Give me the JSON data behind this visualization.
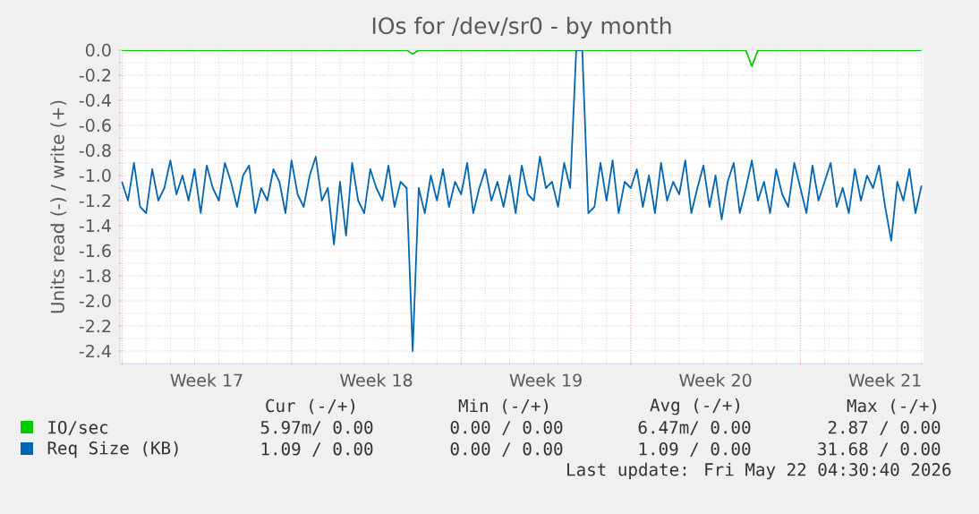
{
  "chart_data": {
    "type": "line",
    "title": "IOs for /dev/sr0 - by month",
    "ylabel": "Units read (-) / write (+)",
    "xlim": [
      "2026-04-19T22:00",
      "2026-05-23T02:00"
    ],
    "xticks": [
      {
        "value": "2026-04-20",
        "label": null
      },
      {
        "value": "2026-04-23T12:00",
        "label": "Week 17"
      },
      {
        "value": "2026-04-27",
        "label": null
      },
      {
        "value": "2026-04-30T12:00",
        "label": "Week 18"
      },
      {
        "value": "2026-05-04",
        "label": null
      },
      {
        "value": "2026-05-07T12:00",
        "label": "Week 19"
      },
      {
        "value": "2026-05-11",
        "label": null
      },
      {
        "value": "2026-05-14T12:00",
        "label": "Week 20"
      },
      {
        "value": "2026-05-18",
        "label": null
      },
      {
        "value": "2026-05-21T12:00",
        "label": "Week 21"
      }
    ],
    "ylim": [
      -2.5,
      0.0
    ],
    "yticks": [
      {
        "value": 0,
        "label": "0.0"
      },
      -0.2,
      -0.4,
      -0.6,
      -0.8,
      {
        "value": -1,
        "label": "-1.0"
      },
      -1.2,
      -1.4,
      -1.6,
      -1.8,
      {
        "value": -2,
        "label": "-2.0"
      },
      -2.2,
      -2.4
    ],
    "grid": true,
    "legend": "bottom",
    "series": [
      {
        "name": "IO/sec",
        "color": "#00cc00",
        "x": [
          "2026-04-20T00:00",
          "2026-05-01T18:00",
          "2026-05-02T00:00",
          "2026-05-02T06:00",
          "2026-05-15T18:00",
          "2026-05-16T00:00",
          "2026-05-16T06:00",
          "2026-05-23T00:00"
        ],
        "values": [
          0,
          0,
          -0.03,
          0,
          0,
          -0.13,
          0,
          0
        ]
      },
      {
        "name": "Req Size (KB)",
        "color": "#0066b3",
        "x": [
          "2026-04-20T00:00",
          "2026-04-20T06:00",
          "2026-04-20T12:00",
          "2026-04-20T18:00",
          "2026-04-21T00:00",
          "2026-04-21T06:00",
          "2026-04-21T12:00",
          "2026-04-21T18:00",
          "2026-04-22T00:00",
          "2026-04-22T06:00",
          "2026-04-22T12:00",
          "2026-04-22T18:00",
          "2026-04-23T00:00",
          "2026-04-23T06:00",
          "2026-04-23T12:00",
          "2026-04-23T18:00",
          "2026-04-24T00:00",
          "2026-04-24T06:00",
          "2026-04-24T12:00",
          "2026-04-24T18:00",
          "2026-04-25T00:00",
          "2026-04-25T06:00",
          "2026-04-25T12:00",
          "2026-04-25T18:00",
          "2026-04-26T00:00",
          "2026-04-26T06:00",
          "2026-04-26T12:00",
          "2026-04-26T18:00",
          "2026-04-27T00:00",
          "2026-04-27T06:00",
          "2026-04-27T12:00",
          "2026-04-27T18:00",
          "2026-04-28T00:00",
          "2026-04-28T06:00",
          "2026-04-28T12:00",
          "2026-04-28T18:00",
          "2026-04-29T00:00",
          "2026-04-29T06:00",
          "2026-04-29T12:00",
          "2026-04-29T18:00",
          "2026-04-30T00:00",
          "2026-04-30T06:00",
          "2026-04-30T12:00",
          "2026-04-30T18:00",
          "2026-05-01T00:00",
          "2026-05-01T06:00",
          "2026-05-01T12:00",
          "2026-05-01T18:00",
          "2026-05-02T00:00",
          "2026-05-02T06:00",
          "2026-05-02T12:00",
          "2026-05-02T18:00",
          "2026-05-03T00:00",
          "2026-05-03T06:00",
          "2026-05-03T12:00",
          "2026-05-03T18:00",
          "2026-05-04T00:00",
          "2026-05-04T06:00",
          "2026-05-04T12:00",
          "2026-05-04T18:00",
          "2026-05-05T00:00",
          "2026-05-05T06:00",
          "2026-05-05T12:00",
          "2026-05-05T18:00",
          "2026-05-06T00:00",
          "2026-05-06T06:00",
          "2026-05-06T12:00",
          "2026-05-06T18:00",
          "2026-05-07T00:00",
          "2026-05-07T06:00",
          "2026-05-07T12:00",
          "2026-05-07T18:00",
          "2026-05-08T00:00",
          "2026-05-08T06:00",
          "2026-05-08T12:00",
          "2026-05-08T18:00",
          "2026-05-09T00:00",
          "2026-05-09T06:00",
          "2026-05-09T12:00",
          "2026-05-09T18:00",
          "2026-05-10T00:00",
          "2026-05-10T06:00",
          "2026-05-10T12:00",
          "2026-05-10T18:00",
          "2026-05-11T00:00",
          "2026-05-11T06:00",
          "2026-05-11T12:00",
          "2026-05-11T18:00",
          "2026-05-12T00:00",
          "2026-05-12T06:00",
          "2026-05-12T12:00",
          "2026-05-12T18:00",
          "2026-05-13T00:00",
          "2026-05-13T06:00",
          "2026-05-13T12:00",
          "2026-05-13T18:00",
          "2026-05-14T00:00",
          "2026-05-14T06:00",
          "2026-05-14T12:00",
          "2026-05-14T18:00",
          "2026-05-15T00:00",
          "2026-05-15T06:00",
          "2026-05-15T12:00",
          "2026-05-15T18:00",
          "2026-05-16T00:00",
          "2026-05-16T06:00",
          "2026-05-16T12:00",
          "2026-05-16T18:00",
          "2026-05-17T00:00",
          "2026-05-17T06:00",
          "2026-05-17T12:00",
          "2026-05-17T18:00",
          "2026-05-18T00:00",
          "2026-05-18T06:00",
          "2026-05-18T12:00",
          "2026-05-18T18:00",
          "2026-05-19T00:00",
          "2026-05-19T06:00",
          "2026-05-19T12:00",
          "2026-05-19T18:00",
          "2026-05-20T00:00",
          "2026-05-20T06:00",
          "2026-05-20T12:00",
          "2026-05-20T18:00",
          "2026-05-21T00:00",
          "2026-05-21T06:00",
          "2026-05-21T12:00",
          "2026-05-21T18:00",
          "2026-05-22T00:00",
          "2026-05-22T06:00",
          "2026-05-22T12:00",
          "2026-05-22T18:00",
          "2026-05-23T00:00"
        ],
        "values": [
          -1.05,
          -1.2,
          -0.9,
          -1.25,
          -1.3,
          -0.95,
          -1.2,
          -1.1,
          -0.88,
          -1.15,
          -1.0,
          -1.2,
          -0.95,
          -1.3,
          -0.92,
          -1.1,
          -1.2,
          -0.9,
          -1.05,
          -1.25,
          -1.0,
          -0.92,
          -1.3,
          -1.1,
          -1.2,
          -0.95,
          -1.05,
          -1.3,
          -0.88,
          -1.15,
          -1.25,
          -1.0,
          -0.85,
          -1.2,
          -1.1,
          -1.55,
          -1.05,
          -1.48,
          -0.9,
          -1.2,
          -1.3,
          -0.95,
          -1.1,
          -1.2,
          -0.92,
          -1.25,
          -1.05,
          -1.1,
          -2.4,
          -1.1,
          -1.3,
          -1.0,
          -1.2,
          -0.95,
          -1.25,
          -1.05,
          -1.15,
          -0.9,
          -1.3,
          -1.1,
          -0.95,
          -1.2,
          -1.05,
          -1.25,
          -1.0,
          -1.3,
          -0.92,
          -1.15,
          -1.2,
          -0.85,
          -1.1,
          -1.05,
          -1.25,
          -0.9,
          -1.1,
          0.0,
          0.0,
          -1.3,
          -1.25,
          -0.9,
          -1.2,
          -0.88,
          -1.3,
          -1.05,
          -1.1,
          -0.95,
          -1.25,
          -1.0,
          -1.3,
          -0.9,
          -1.2,
          -1.05,
          -1.15,
          -0.88,
          -1.3,
          -1.1,
          -0.92,
          -1.25,
          -1.0,
          -1.35,
          -1.05,
          -0.9,
          -1.3,
          -1.1,
          -0.88,
          -1.2,
          -1.05,
          -1.3,
          -0.95,
          -1.15,
          -1.25,
          -0.9,
          -1.1,
          -1.3,
          -0.92,
          -1.2,
          -1.05,
          -0.9,
          -1.25,
          -1.1,
          -1.3,
          -0.95,
          -1.2,
          -1.0,
          -1.1,
          -0.92,
          -1.25,
          -1.52,
          -1.05,
          -1.2,
          -0.95,
          -1.3,
          -1.08
        ]
      }
    ],
    "annotations": [
      "Cur (-/+)",
      "Min (-/+)",
      "Avg (-/+)",
      "Max (-/+)",
      "5.97m/ 0.00",
      "0.00 / 0.00",
      "6.47m/ 0.00",
      "2.87 / 0.00",
      "1.09 / 0.00",
      "0.00 / 0.00",
      "1.09 / 0.00",
      "31.68 / 0.00",
      "Last update: Fri May 22 04:30:40 2026"
    ]
  }
}
